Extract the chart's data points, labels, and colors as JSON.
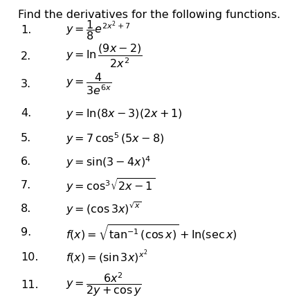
{
  "title": "Find the derivatives for the following functions.",
  "background_color": "#ffffff",
  "text_color": "#000000",
  "title_fontsize": 11.5,
  "item_fontsize": 11.5,
  "items": [
    {
      "num": "1.",
      "formula": "$y = \\dfrac{1}{8}e^{2x^2+7}$"
    },
    {
      "num": "2.",
      "formula": "$y = \\ln\\dfrac{(9x - 2)}{2x^2}$"
    },
    {
      "num": "3.",
      "formula": "$y = \\dfrac{4}{3e^{6x}}$"
    },
    {
      "num": "4.",
      "formula": "$y = \\ln(8x - 3)(2x + 1)$"
    },
    {
      "num": "5.",
      "formula": "$y = 7\\,\\cos^5(5x - 8)$"
    },
    {
      "num": "6.",
      "formula": "$y = \\sin(3 - 4x)^4$"
    },
    {
      "num": "7.",
      "formula": "$y = \\cos^3\\!\\sqrt{2x - 1}$"
    },
    {
      "num": "8.",
      "formula": "$y = (\\cos 3x)^{\\sqrt{x}}$"
    },
    {
      "num": "9.",
      "formula": "$f(x) = \\sqrt{\\tan^{-1}(\\cos x)} + \\ln(\\sec x)$"
    },
    {
      "num": "10.",
      "formula": "$f(x) = (\\sin 3x)^{x^2}$"
    },
    {
      "num": "11.",
      "formula": "$y = \\dfrac{6x^2}{2y + \\cos y}$"
    }
  ]
}
